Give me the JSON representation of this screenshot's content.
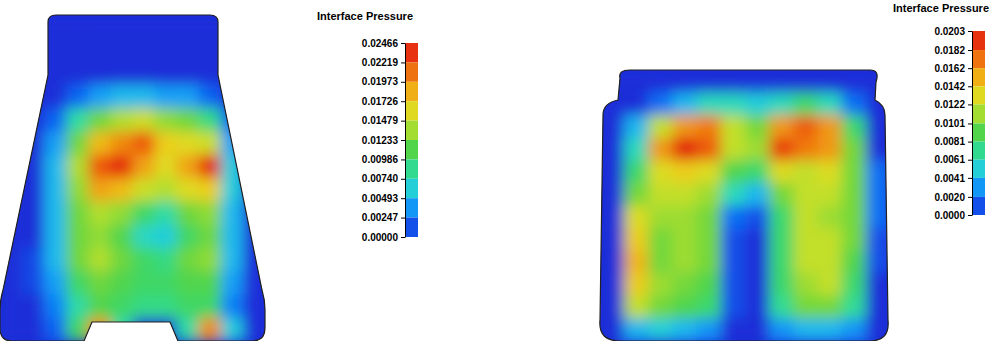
{
  "chart_data": [
    {
      "type": "heatmap",
      "title": "Interface Pressure",
      "cells": [
        [
          0,
          0,
          0,
          0,
          0,
          0,
          0,
          0,
          0,
          0,
          0,
          0
        ],
        [
          0,
          0,
          0,
          0,
          0,
          0,
          0,
          0,
          0,
          0,
          0,
          0
        ],
        [
          0,
          0,
          0,
          0,
          0,
          0,
          0,
          0,
          0,
          0,
          0,
          0
        ],
        [
          0,
          0,
          0,
          0.002,
          0.004,
          0.005,
          0.005,
          0.004,
          0.004,
          0.002,
          0,
          0
        ],
        [
          0,
          0,
          0.002,
          0.008,
          0.012,
          0.014,
          0.015,
          0.013,
          0.012,
          0.009,
          0.002,
          0
        ],
        [
          0,
          0,
          0.004,
          0.012,
          0.018,
          0.02,
          0.022,
          0.017,
          0.016,
          0.015,
          0.004,
          0
        ],
        [
          0,
          0,
          0.005,
          0.014,
          0.022,
          0.024,
          0.019,
          0.016,
          0.019,
          0.024,
          0.006,
          0
        ],
        [
          0,
          0,
          0.005,
          0.013,
          0.019,
          0.018,
          0.015,
          0.014,
          0.016,
          0.017,
          0.006,
          0
        ],
        [
          0,
          0,
          0.005,
          0.012,
          0.014,
          0.013,
          0.01,
          0.008,
          0.012,
          0.013,
          0.005,
          0
        ],
        [
          0,
          0,
          0.005,
          0.012,
          0.013,
          0.011,
          0.007,
          0.006,
          0.01,
          0.012,
          0.005,
          0
        ],
        [
          0,
          0.001,
          0.005,
          0.012,
          0.014,
          0.012,
          0.01,
          0.009,
          0.012,
          0.013,
          0.005,
          0
        ],
        [
          0,
          0.001,
          0.004,
          0.01,
          0.012,
          0.011,
          0.01,
          0.01,
          0.011,
          0.011,
          0.004,
          0
        ],
        [
          0,
          0,
          0.003,
          0.008,
          0.011,
          0.01,
          0.009,
          0.009,
          0.01,
          0.01,
          0.003,
          0
        ],
        [
          0,
          0,
          0.002,
          0.01,
          0.02,
          0.008,
          0,
          0,
          0.008,
          0.02,
          0.006,
          0
        ]
      ],
      "color_range": [
        0,
        0.02466
      ],
      "color_ticks": [
        0.02466,
        0.02219,
        0.01973,
        0.01726,
        0.01479,
        0.01233,
        0.00986,
        {
          "value": 0.0074,
          "label": "0.00740"
        },
        0.00493,
        0.00247,
        {
          "value": 0,
          "label": "0.00000"
        }
      ]
    },
    {
      "type": "heatmap",
      "title": "Interface Pressure",
      "cells": [
        [
          0,
          0,
          0,
          0,
          0,
          0,
          0,
          0,
          0,
          0,
          0,
          0
        ],
        [
          0,
          0,
          0.002,
          0.004,
          0.006,
          0.006,
          0.005,
          0.006,
          0.008,
          0.006,
          0.002,
          0
        ],
        [
          0,
          0.004,
          0.012,
          0.016,
          0.017,
          0.012,
          0.01,
          0.016,
          0.018,
          0.016,
          0.008,
          0
        ],
        [
          0,
          0.006,
          0.016,
          0.02,
          0.018,
          0.012,
          0.011,
          0.019,
          0.017,
          0.016,
          0.01,
          0
        ],
        [
          0,
          0.008,
          0.013,
          0.014,
          0.013,
          0.009,
          0.008,
          0.013,
          0.012,
          0.013,
          0.01,
          0.002
        ],
        [
          0,
          0.01,
          0.012,
          0.012,
          0.011,
          0.006,
          0.004,
          0.01,
          0.012,
          0.012,
          0.01,
          0.002
        ],
        [
          0,
          0.013,
          0.011,
          0.011,
          0.01,
          0.002,
          0.001,
          0.008,
          0.012,
          0.011,
          0.01,
          0.002
        ],
        [
          0,
          0.014,
          0.01,
          0.011,
          0.01,
          0.001,
          0,
          0.008,
          0.012,
          0.012,
          0.01,
          0.001
        ],
        [
          0,
          0.015,
          0.01,
          0.011,
          0.01,
          0.001,
          0,
          0.008,
          0.012,
          0.012,
          0.009,
          0.001
        ],
        [
          0,
          0.014,
          0.011,
          0.01,
          0.009,
          0.001,
          0,
          0.008,
          0.011,
          0.012,
          0.008,
          0
        ],
        [
          0,
          0.012,
          0.01,
          0.009,
          0.008,
          0.001,
          0,
          0.007,
          0.01,
          0.01,
          0.007,
          0
        ],
        [
          0,
          0.004,
          0.005,
          0.004,
          0.003,
          0,
          0,
          0.003,
          0.004,
          0.004,
          0.003,
          0
        ]
      ],
      "color_range": [
        0,
        0.0203
      ],
      "color_ticks": [
        0.0203,
        0.0182,
        0.0162,
        0.0142,
        0.0122,
        0.0101,
        0.0081,
        0.0061,
        0.0041,
        {
          "value": 0.002,
          "label": "0.0020"
        },
        {
          "value": 0,
          "label": "0.0000"
        }
      ]
    }
  ]
}
